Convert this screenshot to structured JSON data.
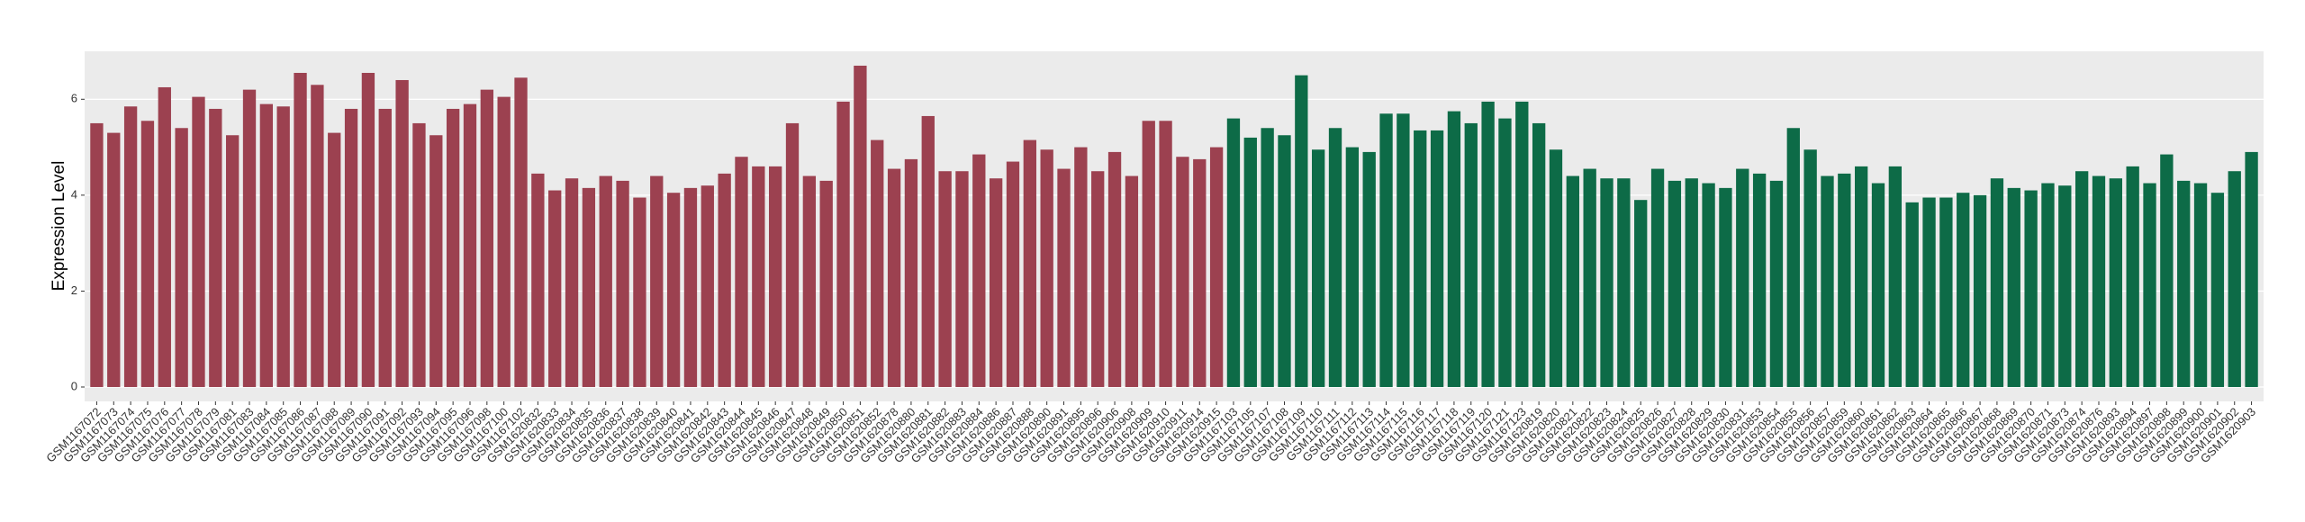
{
  "chart_data": {
    "type": "bar",
    "y_label": "Expression Level",
    "categories": [
      "GSM1167072",
      "GSM1167073",
      "GSM1167074",
      "GSM1167075",
      "GSM1167076",
      "GSM1167077",
      "GSM1167078",
      "GSM1167079",
      "GSM1167081",
      "GSM1167083",
      "GSM1167084",
      "GSM1167085",
      "GSM1167086",
      "GSM1167087",
      "GSM1167088",
      "GSM1167089",
      "GSM1167090",
      "GSM1167091",
      "GSM1167092",
      "GSM1167093",
      "GSM1167094",
      "GSM1167095",
      "GSM1167096",
      "GSM1167098",
      "GSM1167100",
      "GSM1167102",
      "GSM1620832",
      "GSM1620833",
      "GSM1620834",
      "GSM1620835",
      "GSM1620836",
      "GSM1620837",
      "GSM1620838",
      "GSM1620839",
      "GSM1620840",
      "GSM1620841",
      "GSM1620842",
      "GSM1620843",
      "GSM1620844",
      "GSM1620845",
      "GSM1620846",
      "GSM1620847",
      "GSM1620848",
      "GSM1620849",
      "GSM1620850",
      "GSM1620851",
      "GSM1620852",
      "GSM1620878",
      "GSM1620880",
      "GSM1620881",
      "GSM1620882",
      "GSM1620883",
      "GSM1620884",
      "GSM1620886",
      "GSM1620887",
      "GSM1620888",
      "GSM1620890",
      "GSM1620891",
      "GSM1620895",
      "GSM1620896",
      "GSM1620906",
      "GSM1620908",
      "GSM1620909",
      "GSM1620910",
      "GSM1620911",
      "GSM1620914",
      "GSM1620915",
      "GSM1167103",
      "GSM1167105",
      "GSM1167107",
      "GSM1167108",
      "GSM1167109",
      "GSM1167110",
      "GSM1167111",
      "GSM1167112",
      "GSM1167113",
      "GSM1167114",
      "GSM1167115",
      "GSM1167116",
      "GSM1167117",
      "GSM1167118",
      "GSM1167119",
      "GSM1167120",
      "GSM1167121",
      "GSM1167123",
      "GSM1620819",
      "GSM1620820",
      "GSM1620821",
      "GSM1620822",
      "GSM1620823",
      "GSM1620824",
      "GSM1620825",
      "GSM1620826",
      "GSM1620827",
      "GSM1620828",
      "GSM1620829",
      "GSM1620830",
      "GSM1620831",
      "GSM1620853",
      "GSM1620854",
      "GSM1620855",
      "GSM1620856",
      "GSM1620857",
      "GSM1620859",
      "GSM1620860",
      "GSM1620861",
      "GSM1620862",
      "GSM1620863",
      "GSM1620864",
      "GSM1620865",
      "GSM1620866",
      "GSM1620867",
      "GSM1620868",
      "GSM1620869",
      "GSM1620870",
      "GSM1620871",
      "GSM1620873",
      "GSM1620874",
      "GSM1620876",
      "GSM1620893",
      "GSM1620894",
      "GSM1620897",
      "GSM1620898",
      "GSM1620899",
      "GSM1620900",
      "GSM1620901",
      "GSM1620902",
      "GSM1620903"
    ],
    "values": [
      5.5,
      5.3,
      5.85,
      5.55,
      6.25,
      5.4,
      6.05,
      5.8,
      5.25,
      6.2,
      5.9,
      5.85,
      6.55,
      6.3,
      5.3,
      5.8,
      6.55,
      5.8,
      6.4,
      5.5,
      5.25,
      5.8,
      5.9,
      6.2,
      6.05,
      6.45,
      4.45,
      4.1,
      4.35,
      4.15,
      4.4,
      4.3,
      3.95,
      4.4,
      4.05,
      4.15,
      4.2,
      4.45,
      4.8,
      4.6,
      4.6,
      5.5,
      4.4,
      4.3,
      5.95,
      6.7,
      5.15,
      4.55,
      4.75,
      5.65,
      4.5,
      4.5,
      4.85,
      4.35,
      4.7,
      5.15,
      4.95,
      4.55,
      5.0,
      4.5,
      4.9,
      4.4,
      5.55,
      5.55,
      4.8,
      4.75,
      5.0,
      5.6,
      5.2,
      5.4,
      5.25,
      6.5,
      4.95,
      5.4,
      5.0,
      4.9,
      5.7,
      5.7,
      5.35,
      5.35,
      5.75,
      5.5,
      5.95,
      5.6,
      5.95,
      5.5,
      4.95,
      4.4,
      4.55,
      4.35,
      4.35,
      3.9,
      4.55,
      4.3,
      4.35,
      4.25,
      4.15,
      4.55,
      4.45,
      4.3,
      5.4,
      4.95,
      4.4,
      4.45,
      4.6,
      4.25,
      4.6,
      3.85,
      3.95,
      3.95,
      4.05,
      4.0,
      4.35,
      4.15,
      4.1,
      4.25,
      4.2,
      4.5,
      4.4,
      4.35,
      4.6,
      4.25,
      4.85,
      4.3,
      4.25,
      4.05,
      4.5,
      4.9
    ],
    "colors": [
      "#9c4150",
      "#9c4150",
      "#9c4150",
      "#9c4150",
      "#9c4150",
      "#9c4150",
      "#9c4150",
      "#9c4150",
      "#9c4150",
      "#9c4150",
      "#9c4150",
      "#9c4150",
      "#9c4150",
      "#9c4150",
      "#9c4150",
      "#9c4150",
      "#9c4150",
      "#9c4150",
      "#9c4150",
      "#9c4150",
      "#9c4150",
      "#9c4150",
      "#9c4150",
      "#9c4150",
      "#9c4150",
      "#9c4150",
      "#9c4150",
      "#9c4150",
      "#9c4150",
      "#9c4150",
      "#9c4150",
      "#9c4150",
      "#9c4150",
      "#9c4150",
      "#9c4150",
      "#9c4150",
      "#9c4150",
      "#9c4150",
      "#9c4150",
      "#9c4150",
      "#9c4150",
      "#9c4150",
      "#9c4150",
      "#9c4150",
      "#9c4150",
      "#9c4150",
      "#9c4150",
      "#9c4150",
      "#9c4150",
      "#9c4150",
      "#9c4150",
      "#9c4150",
      "#9c4150",
      "#9c4150",
      "#9c4150",
      "#9c4150",
      "#9c4150",
      "#9c4150",
      "#9c4150",
      "#9c4150",
      "#9c4150",
      "#9c4150",
      "#9c4150",
      "#9c4150",
      "#9c4150",
      "#9c4150",
      "#9c4150",
      "#0d6b47",
      "#0d6b47",
      "#0d6b47",
      "#0d6b47",
      "#0d6b47",
      "#0d6b47",
      "#0d6b47",
      "#0d6b47",
      "#0d6b47",
      "#0d6b47",
      "#0d6b47",
      "#0d6b47",
      "#0d6b47",
      "#0d6b47",
      "#0d6b47",
      "#0d6b47",
      "#0d6b47",
      "#0d6b47",
      "#0d6b47",
      "#0d6b47",
      "#0d6b47",
      "#0d6b47",
      "#0d6b47",
      "#0d6b47",
      "#0d6b47",
      "#0d6b47",
      "#0d6b47",
      "#0d6b47",
      "#0d6b47",
      "#0d6b47",
      "#0d6b47",
      "#0d6b47",
      "#0d6b47",
      "#0d6b47",
      "#0d6b47",
      "#0d6b47",
      "#0d6b47",
      "#0d6b47",
      "#0d6b47",
      "#0d6b47",
      "#0d6b47",
      "#0d6b47",
      "#0d6b47",
      "#0d6b47",
      "#0d6b47",
      "#0d6b47",
      "#0d6b47",
      "#0d6b47",
      "#0d6b47",
      "#0d6b47",
      "#0d6b47",
      "#0d6b47",
      "#0d6b47",
      "#0d6b47",
      "#0d6b47",
      "#0d6b47",
      "#0d6b47",
      "#0d6b47",
      "#0d6b47",
      "#0d6b47",
      "#0d6b47"
    ],
    "ylim": [
      -0.3,
      7.0
    ],
    "yticks": [
      0,
      2,
      4,
      6
    ],
    "grid": true
  }
}
